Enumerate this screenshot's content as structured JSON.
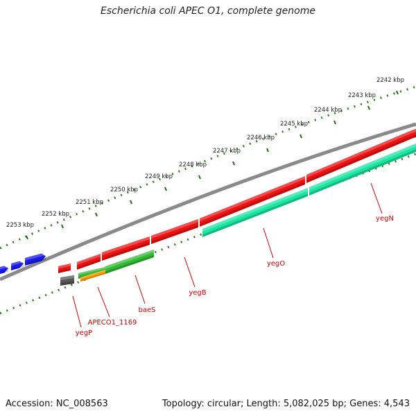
{
  "title": "Escherichia coli APEC O1, complete genome",
  "footer": {
    "accession": "Accession: NC_008563",
    "summary": "Topology: circular; Length: 5,082,025 bp; Genes: 4,543"
  },
  "ticks": [
    "2242 kbp",
    "2243 kbp",
    "2244 kbp",
    "2245 kbp",
    "2246 kbp",
    "2247 kbp",
    "2248 kbp",
    "2249 kbp",
    "2250 kbp",
    "2251 kbp",
    "2252 kbp",
    "2253 kbp"
  ],
  "gene_labels": [
    "yegN",
    "yegO",
    "yegB",
    "baeS",
    "APECO1_1169",
    "yegP"
  ],
  "colors": {
    "backbone": "#888888",
    "tick_dots": "#2e7d1f",
    "forward_gene": "#ee1111",
    "blue_gene": "#1a1aee",
    "teal_gene": "#19e6a0",
    "green_gene": "#33bb33",
    "orange_gene": "#ff9900",
    "gray_gene": "#555555",
    "label_text": "#cc0000"
  }
}
